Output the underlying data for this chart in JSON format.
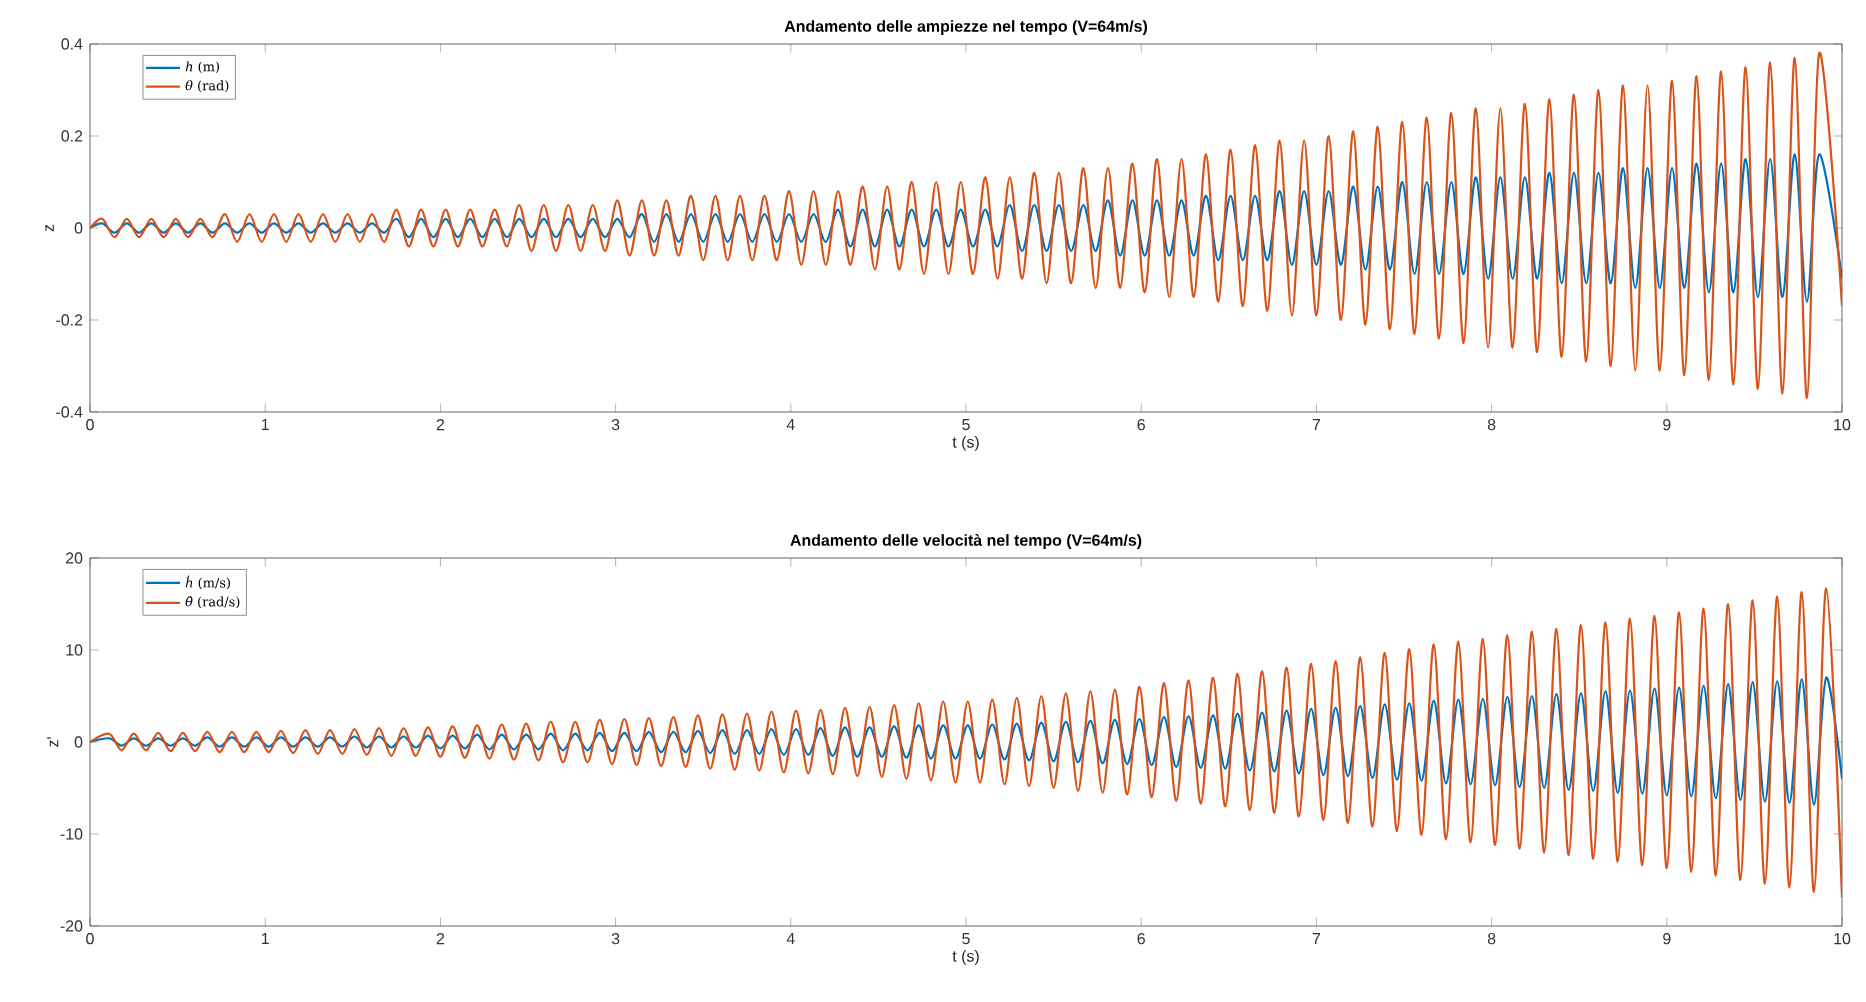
{
  "chart_data": [
    {
      "type": "line",
      "title": "Andamento delle ampiezze nel tempo (V=64m/s)",
      "xlabel": "t (s)",
      "ylabel": "z",
      "xlim": [
        0,
        10
      ],
      "ylim": [
        -0.4,
        0.4
      ],
      "xticks": [
        0,
        1,
        2,
        3,
        4,
        5,
        6,
        7,
        8,
        9,
        10
      ],
      "yticks": [
        -0.4,
        -0.2,
        0,
        0.2,
        0.4
      ],
      "legend": "top left",
      "x": [
        0,
        0.07,
        0.14,
        0.21,
        0.28,
        0.35,
        0.42,
        0.49,
        0.56,
        0.63,
        0.7,
        0.77,
        0.84,
        0.91,
        0.98,
        1.05,
        1.12,
        1.19,
        1.26,
        1.33,
        1.4,
        1.47,
        1.54,
        1.61,
        1.68,
        1.75,
        1.82,
        1.89,
        1.96,
        2.03,
        2.1,
        2.17,
        2.24,
        2.31,
        2.38,
        2.45,
        2.52,
        2.59,
        2.66,
        2.73,
        2.8,
        2.87,
        2.94,
        3.01,
        3.08,
        3.15,
        3.22,
        3.29,
        3.36,
        3.43,
        3.5,
        3.57,
        3.64,
        3.71,
        3.78,
        3.85,
        3.92,
        3.99,
        4.06,
        4.13,
        4.2,
        4.27,
        4.34,
        4.41,
        4.48,
        4.55,
        4.62,
        4.69,
        4.76,
        4.83,
        4.9,
        4.97,
        5.04,
        5.11,
        5.18,
        5.25,
        5.32,
        5.39,
        5.46,
        5.53,
        5.6,
        5.67,
        5.74,
        5.81,
        5.88,
        5.95,
        6.02,
        6.09,
        6.16,
        6.23,
        6.3,
        6.37,
        6.44,
        6.51,
        6.58,
        6.65,
        6.72,
        6.79,
        6.86,
        6.93,
        7,
        7.07,
        7.14,
        7.21,
        7.28,
        7.35,
        7.42,
        7.49,
        7.56,
        7.63,
        7.7,
        7.77,
        7.84,
        7.91,
        7.98,
        8.05,
        8.12,
        8.19,
        8.26,
        8.33,
        8.4,
        8.47,
        8.54,
        8.61,
        8.68,
        8.75,
        8.82,
        8.89,
        8.96,
        9.03,
        9.1,
        9.17,
        9.24,
        9.31,
        9.38,
        9.45,
        9.52,
        9.59,
        9.66,
        9.73,
        9.8,
        9.87,
        10
      ],
      "series": [
        {
          "name": "*h* (m)",
          "color": "#0072bd",
          "values": [
            0,
            0.01,
            -0.01,
            0.01,
            -0.01,
            0.01,
            -0.01,
            0.01,
            -0.01,
            0.01,
            -0.01,
            0.01,
            -0.01,
            0.01,
            -0.01,
            0.01,
            -0.01,
            0.01,
            -0.01,
            0.01,
            -0.01,
            0.01,
            -0.01,
            0.01,
            -0.01,
            0.02,
            -0.02,
            0.02,
            -0.02,
            0.02,
            -0.02,
            0.02,
            -0.02,
            0.02,
            -0.02,
            0.02,
            -0.02,
            0.02,
            -0.02,
            0.02,
            -0.02,
            0.02,
            -0.02,
            0.02,
            -0.02,
            0.03,
            -0.03,
            0.03,
            -0.03,
            0.03,
            -0.03,
            0.03,
            -0.03,
            0.03,
            -0.03,
            0.03,
            -0.03,
            0.03,
            -0.03,
            0.03,
            -0.03,
            0.04,
            -0.04,
            0.04,
            -0.04,
            0.04,
            -0.04,
            0.04,
            -0.04,
            0.04,
            -0.04,
            0.04,
            -0.04,
            0.04,
            -0.04,
            0.05,
            -0.05,
            0.05,
            -0.05,
            0.05,
            -0.05,
            0.05,
            -0.05,
            0.06,
            -0.06,
            0.06,
            -0.06,
            0.06,
            -0.06,
            0.06,
            -0.06,
            0.07,
            -0.07,
            0.07,
            -0.07,
            0.07,
            -0.07,
            0.08,
            -0.08,
            0.08,
            -0.08,
            0.08,
            -0.08,
            0.09,
            -0.09,
            0.09,
            -0.09,
            0.1,
            -0.1,
            0.1,
            -0.1,
            0.1,
            -0.1,
            0.11,
            -0.11,
            0.11,
            -0.11,
            0.11,
            -0.11,
            0.12,
            -0.12,
            0.12,
            -0.12,
            0.12,
            -0.12,
            0.13,
            -0.13,
            0.13,
            -0.13,
            0.13,
            -0.13,
            0.14,
            -0.14,
            0.14,
            -0.14,
            0.15,
            -0.15,
            0.15,
            -0.15,
            0.16,
            -0.16,
            0.16,
            -0.11
          ]
        },
        {
          "name": "*θ* (rad)",
          "color": "#d95319",
          "values": [
            0,
            0.02,
            -0.02,
            0.02,
            -0.02,
            0.02,
            -0.02,
            0.02,
            -0.02,
            0.02,
            -0.02,
            0.03,
            -0.03,
            0.03,
            -0.03,
            0.03,
            -0.03,
            0.03,
            -0.03,
            0.03,
            -0.03,
            0.03,
            -0.03,
            0.03,
            -0.03,
            0.04,
            -0.04,
            0.04,
            -0.04,
            0.04,
            -0.04,
            0.04,
            -0.04,
            0.04,
            -0.04,
            0.05,
            -0.05,
            0.05,
            -0.05,
            0.05,
            -0.05,
            0.05,
            -0.05,
            0.06,
            -0.06,
            0.06,
            -0.06,
            0.06,
            -0.06,
            0.07,
            -0.07,
            0.07,
            -0.07,
            0.07,
            -0.07,
            0.07,
            -0.07,
            0.08,
            -0.08,
            0.08,
            -0.08,
            0.08,
            -0.08,
            0.09,
            -0.09,
            0.09,
            -0.09,
            0.1,
            -0.1,
            0.1,
            -0.1,
            0.1,
            -0.1,
            0.11,
            -0.11,
            0.11,
            -0.11,
            0.12,
            -0.12,
            0.12,
            -0.12,
            0.13,
            -0.13,
            0.13,
            -0.13,
            0.14,
            -0.14,
            0.15,
            -0.15,
            0.15,
            -0.15,
            0.16,
            -0.16,
            0.17,
            -0.17,
            0.18,
            -0.18,
            0.19,
            -0.19,
            0.19,
            -0.19,
            0.2,
            -0.2,
            0.21,
            -0.21,
            0.22,
            -0.22,
            0.23,
            -0.23,
            0.24,
            -0.24,
            0.25,
            -0.25,
            0.26,
            -0.26,
            0.26,
            -0.26,
            0.27,
            -0.27,
            0.28,
            -0.28,
            0.29,
            -0.29,
            0.3,
            -0.3,
            0.31,
            -0.31,
            0.31,
            -0.31,
            0.32,
            -0.32,
            0.33,
            -0.33,
            0.34,
            -0.34,
            0.35,
            -0.35,
            0.36,
            -0.36,
            0.37,
            -0.37,
            0.38,
            -0.17
          ]
        }
      ]
    },
    {
      "type": "line",
      "title": "Andamento delle velocità nel tempo (V=64m/s)",
      "xlabel": "t (s)",
      "ylabel": "z'",
      "xlim": [
        0,
        10
      ],
      "ylim": [
        -20,
        20
      ],
      "xticks": [
        0,
        1,
        2,
        3,
        4,
        5,
        6,
        7,
        8,
        9,
        10
      ],
      "yticks": [
        -20,
        -10,
        0,
        10,
        20
      ],
      "legend": "top left",
      "x": [
        0,
        0.11,
        0.18,
        0.25,
        0.32,
        0.39,
        0.46,
        0.53,
        0.6,
        0.67,
        0.74,
        0.81,
        0.88,
        0.95,
        1.02,
        1.09,
        1.16,
        1.23,
        1.3,
        1.37,
        1.44,
        1.51,
        1.58,
        1.65,
        1.72,
        1.79,
        1.86,
        1.93,
        2,
        2.07,
        2.14,
        2.21,
        2.28,
        2.35,
        2.42,
        2.49,
        2.56,
        2.63,
        2.7,
        2.77,
        2.84,
        2.91,
        2.98,
        3.05,
        3.12,
        3.19,
        3.26,
        3.33,
        3.4,
        3.47,
        3.54,
        3.61,
        3.68,
        3.75,
        3.82,
        3.89,
        3.96,
        4.03,
        4.1,
        4.17,
        4.24,
        4.31,
        4.38,
        4.45,
        4.52,
        4.59,
        4.66,
        4.73,
        4.8,
        4.87,
        4.94,
        5.01,
        5.08,
        5.15,
        5.22,
        5.29,
        5.36,
        5.43,
        5.5,
        5.57,
        5.64,
        5.71,
        5.78,
        5.85,
        5.92,
        5.99,
        6.06,
        6.13,
        6.2,
        6.27,
        6.34,
        6.41,
        6.48,
        6.55,
        6.62,
        6.69,
        6.76,
        6.83,
        6.9,
        6.97,
        7.04,
        7.11,
        7.18,
        7.25,
        7.32,
        7.39,
        7.46,
        7.53,
        7.6,
        7.67,
        7.74,
        7.81,
        7.88,
        7.95,
        8.02,
        8.09,
        8.16,
        8.23,
        8.3,
        8.37,
        8.44,
        8.51,
        8.58,
        8.65,
        8.72,
        8.79,
        8.86,
        8.93,
        9,
        9.07,
        9.14,
        9.21,
        9.28,
        9.35,
        9.42,
        9.49,
        9.56,
        9.63,
        9.7,
        9.77,
        9.84,
        9.91,
        10
      ],
      "series": [
        {
          "name": "*ḣ* (m/s)",
          "color": "#0072bd",
          "values": [
            0,
            0.4,
            -0.4,
            0.4,
            -0.4,
            0.4,
            -0.4,
            0.4,
            -0.4,
            0.5,
            -0.5,
            0.5,
            -0.5,
            0.5,
            -0.5,
            0.5,
            -0.5,
            0.5,
            -0.5,
            0.5,
            -0.5,
            0.6,
            -0.6,
            0.6,
            -0.6,
            0.6,
            -0.6,
            0.7,
            -0.7,
            0.7,
            -0.7,
            0.8,
            -0.8,
            0.8,
            -0.8,
            0.8,
            -0.8,
            0.9,
            -0.9,
            0.9,
            -0.9,
            1,
            -1,
            1,
            -1,
            1.1,
            -1.1,
            1.1,
            -1.1,
            1.2,
            -1.2,
            1.3,
            -1.3,
            1.3,
            -1.3,
            1.4,
            -1.4,
            1.4,
            -1.4,
            1.5,
            -1.5,
            1.6,
            -1.6,
            1.6,
            -1.6,
            1.7,
            -1.7,
            1.8,
            -1.8,
            1.8,
            -1.8,
            1.8,
            -1.8,
            1.9,
            -1.9,
            2,
            -2,
            2.1,
            -2.1,
            2.2,
            -2.2,
            2.3,
            -2.3,
            2.4,
            -2.4,
            2.5,
            -2.5,
            2.7,
            -2.7,
            2.8,
            -2.8,
            2.9,
            -2.9,
            3.1,
            -3.1,
            3.2,
            -3.2,
            3.4,
            -3.4,
            3.6,
            -3.6,
            3.7,
            -3.7,
            3.9,
            -3.9,
            4.1,
            -4.1,
            4.2,
            -4.2,
            4.5,
            -4.5,
            4.6,
            -4.6,
            4.7,
            -4.7,
            4.9,
            -4.9,
            5,
            -5,
            5.2,
            -5.2,
            5.3,
            -5.3,
            5.5,
            -5.5,
            5.6,
            -5.6,
            5.8,
            -5.8,
            5.9,
            -5.9,
            6.1,
            -6.1,
            6.3,
            -6.3,
            6.5,
            -6.5,
            6.6,
            -6.6,
            6.8,
            -6.8,
            7,
            -4
          ]
        },
        {
          "name": "*θ̇* (rad/s)",
          "color": "#d95319",
          "values": [
            0,
            0.9,
            -0.9,
            0.9,
            -0.9,
            1,
            -1,
            1,
            -1,
            1.1,
            -1.1,
            1.1,
            -1.1,
            1.1,
            -1.1,
            1.2,
            -1.2,
            1.3,
            -1.3,
            1.3,
            -1.3,
            1.4,
            -1.4,
            1.5,
            -1.5,
            1.5,
            -1.5,
            1.6,
            -1.6,
            1.7,
            -1.7,
            1.8,
            -1.8,
            1.9,
            -1.9,
            2,
            -2,
            2.2,
            -2.2,
            2.2,
            -2.2,
            2.4,
            -2.4,
            2.5,
            -2.5,
            2.6,
            -2.6,
            2.7,
            -2.7,
            2.9,
            -2.9,
            3,
            -3,
            3.1,
            -3.1,
            3.3,
            -3.3,
            3.4,
            -3.4,
            3.5,
            -3.5,
            3.7,
            -3.7,
            3.8,
            -3.8,
            4,
            -4,
            4.2,
            -4.2,
            4.4,
            -4.4,
            4.4,
            -4.4,
            4.6,
            -4.6,
            4.8,
            -4.8,
            5,
            -5,
            5.3,
            -5.3,
            5.5,
            -5.5,
            5.7,
            -5.7,
            6,
            -6,
            6.4,
            -6.4,
            6.7,
            -6.7,
            7,
            -7,
            7.4,
            -7.4,
            7.7,
            -7.7,
            8.1,
            -8.1,
            8.5,
            -8.5,
            8.8,
            -8.8,
            9.2,
            -9.2,
            9.7,
            -9.7,
            10.1,
            -10.1,
            10.6,
            -10.6,
            10.9,
            -10.9,
            11.2,
            -11.2,
            11.6,
            -11.6,
            12,
            -12,
            12.3,
            -12.3,
            12.7,
            -12.7,
            13,
            -13,
            13.4,
            -13.4,
            13.7,
            -13.7,
            14.1,
            -14.1,
            14.5,
            -14.5,
            15,
            -15,
            15.4,
            -15.4,
            15.8,
            -15.8,
            16.3,
            -16.3,
            16.7,
            -16.9
          ]
        }
      ]
    }
  ]
}
